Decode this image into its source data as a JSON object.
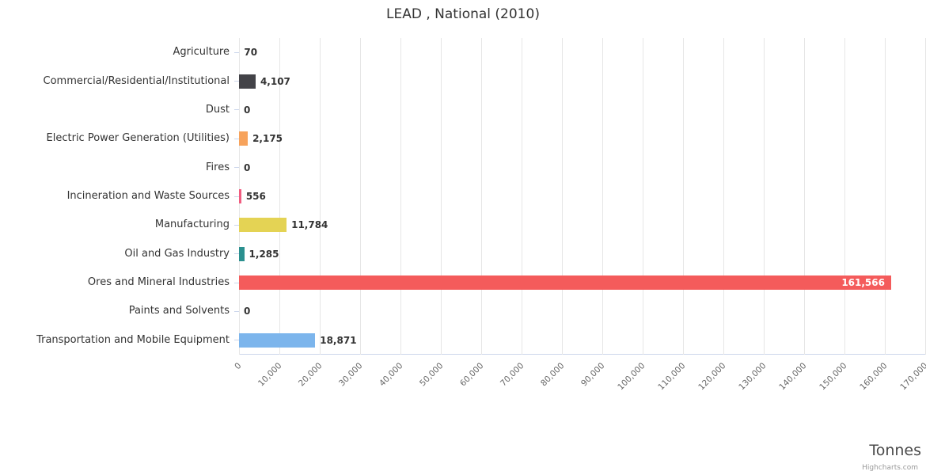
{
  "chart_data": {
    "type": "bar",
    "title": "LEAD , National (2010)",
    "xlabel": "Tonnes",
    "ylabel": "",
    "categories": [
      "Agriculture",
      "Commercial/Residential/Institutional",
      "Dust",
      "Electric Power Generation (Utilities)",
      "Fires",
      "Incineration and Waste Sources",
      "Manufacturing",
      "Oil and Gas Industry",
      "Ores and Mineral Industries",
      "Paints and Solvents",
      "Transportation and Mobile Equipment"
    ],
    "values": [
      70,
      4107,
      0,
      2175,
      0,
      556,
      11784,
      1285,
      161566,
      0,
      18871
    ],
    "value_labels": [
      "70",
      "4,107",
      "0",
      "2,175",
      "0",
      "556",
      "11,784",
      "1,285",
      "161,566",
      "0",
      "18,871"
    ],
    "bar_colors": [
      "#7cb5ec",
      "#434348",
      "#90ed7d",
      "#f7a35c",
      "#8085e9",
      "#f15c80",
      "#e4d354",
      "#2b908f",
      "#f45b5b",
      "#91e8e1",
      "#7cb5ec"
    ],
    "xlim": [
      0,
      170000
    ],
    "tick_interval": 10000,
    "x_tick_labels": [
      "0",
      "10,000",
      "20,000",
      "30,000",
      "40,000",
      "50,000",
      "60,000",
      "70,000",
      "80,000",
      "90,000",
      "100,000",
      "110,000",
      "120,000",
      "130,000",
      "140,000",
      "150,000",
      "160,000",
      "170,000"
    ],
    "grid": true,
    "legend": "none",
    "credit": "Highcharts.com",
    "colors": {
      "grid": "#e6e6e6",
      "axis": "#ccd6eb",
      "label": "#333333",
      "tick_label": "#666666"
    }
  }
}
